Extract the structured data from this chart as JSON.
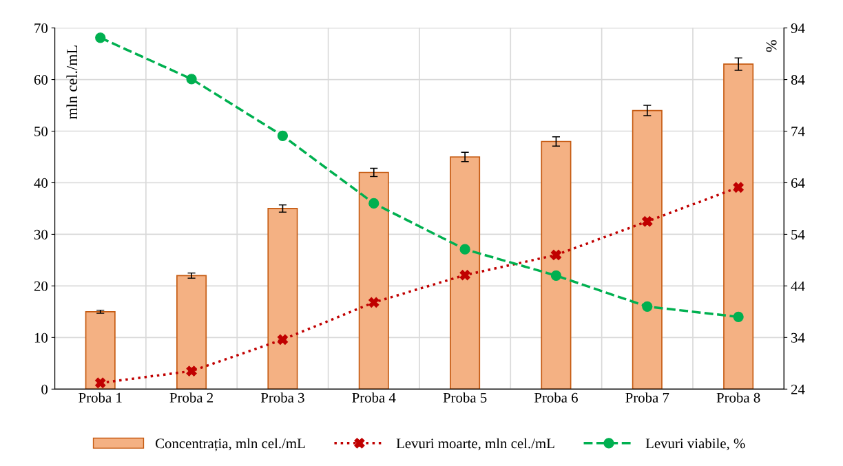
{
  "chart_data": {
    "type": "bar",
    "categories": [
      "Proba 1",
      "Proba 2",
      "Proba 3",
      "Proba 4",
      "Proba 5",
      "Proba 6",
      "Proba 7",
      "Proba 8"
    ],
    "series": [
      {
        "name": "Concentrația, mln cel./mL",
        "color": "#f4b183",
        "values": [
          15,
          22,
          35,
          42,
          45,
          48,
          54,
          63
        ],
        "errors": [
          0.3,
          0.5,
          0.7,
          0.8,
          0.9,
          0.9,
          1.0,
          1.2
        ]
      },
      {
        "name": "Levuri moarte, mln cel./mL",
        "type": "line",
        "color": "#c00000",
        "marker": "cross",
        "line_style": "dotted",
        "values": [
          1.2,
          3.5,
          9.6,
          16.8,
          22.1,
          26,
          32.5,
          39.1
        ]
      },
      {
        "name": "Levuri viabile, %",
        "type": "line",
        "axis": "y2",
        "color": "#00b050",
        "marker": "circle",
        "line_style": "dashed",
        "values": [
          92.1,
          84.1,
          73.1,
          60,
          51.1,
          46,
          40,
          38
        ]
      }
    ],
    "ylabel": "mln cel./mL",
    "y2label": "%",
    "ylim": [
      0,
      70
    ],
    "yticks": [
      0,
      10,
      20,
      30,
      40,
      50,
      60,
      70
    ],
    "y2lim": [
      24,
      94
    ],
    "y2ticks": [
      24,
      34,
      44,
      54,
      64,
      74,
      84,
      94
    ],
    "grid": true,
    "legend": "bottom"
  }
}
